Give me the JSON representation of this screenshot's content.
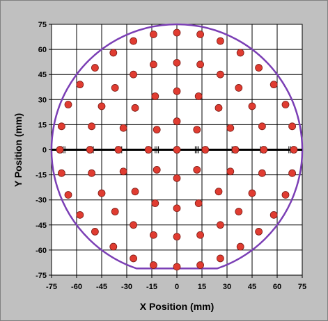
{
  "chart_data": {
    "type": "scatter",
    "xlabel": "X Position (mm)",
    "ylabel": "Y Position (mm)",
    "xlim": [
      -75,
      75
    ],
    "ylim": [
      -75,
      75
    ],
    "xticks": [
      -75,
      -60,
      -45,
      -30,
      -15,
      0,
      15,
      30,
      45,
      60,
      75
    ],
    "yticks": [
      75,
      60,
      45,
      30,
      15,
      0,
      -15,
      -30,
      -45,
      -60,
      -75
    ],
    "grid": true,
    "colors": {
      "plot_background": "#ffffff",
      "outer_background": "#c0c0c0",
      "grid": "#000000",
      "points": "#e03c31",
      "wafer_outline": "#7b3fb5",
      "scan_line": "#000000"
    },
    "wafer_outline": {
      "shape": "circle-with-flat",
      "radius": 75,
      "flat_y": -71
    },
    "points": [
      {
        "x": 0,
        "y": 70
      },
      {
        "x": 14,
        "y": 69
      },
      {
        "x": 26,
        "y": 65
      },
      {
        "x": 38,
        "y": 58
      },
      {
        "x": 49,
        "y": 49
      },
      {
        "x": 58,
        "y": 39
      },
      {
        "x": 65,
        "y": 27
      },
      {
        "x": 69,
        "y": 14
      },
      {
        "x": 70,
        "y": 0
      },
      {
        "x": 69,
        "y": -14
      },
      {
        "x": 65,
        "y": -27
      },
      {
        "x": 58,
        "y": -39
      },
      {
        "x": 49,
        "y": -49
      },
      {
        "x": 38,
        "y": -58
      },
      {
        "x": 26,
        "y": -65
      },
      {
        "x": 14,
        "y": -69
      },
      {
        "x": 0,
        "y": -70
      },
      {
        "x": -14,
        "y": -69
      },
      {
        "x": -26,
        "y": -65
      },
      {
        "x": -38,
        "y": -58
      },
      {
        "x": -49,
        "y": -49
      },
      {
        "x": -58,
        "y": -39
      },
      {
        "x": -65,
        "y": -27
      },
      {
        "x": -69,
        "y": -14
      },
      {
        "x": -70,
        "y": 0
      },
      {
        "x": -69,
        "y": 14
      },
      {
        "x": -65,
        "y": 27
      },
      {
        "x": -58,
        "y": 39
      },
      {
        "x": -49,
        "y": 49
      },
      {
        "x": -38,
        "y": 58
      },
      {
        "x": -26,
        "y": 65
      },
      {
        "x": -14,
        "y": 69
      },
      {
        "x": 0,
        "y": 52
      },
      {
        "x": 14,
        "y": 51
      },
      {
        "x": 26,
        "y": 45
      },
      {
        "x": 37,
        "y": 37
      },
      {
        "x": 45,
        "y": 26
      },
      {
        "x": 51,
        "y": 14
      },
      {
        "x": 52,
        "y": 0
      },
      {
        "x": 51,
        "y": -14
      },
      {
        "x": 45,
        "y": -26
      },
      {
        "x": 37,
        "y": -37
      },
      {
        "x": 26,
        "y": -45
      },
      {
        "x": 14,
        "y": -51
      },
      {
        "x": 0,
        "y": -52
      },
      {
        "x": -14,
        "y": -51
      },
      {
        "x": -26,
        "y": -45
      },
      {
        "x": -37,
        "y": -37
      },
      {
        "x": -45,
        "y": -26
      },
      {
        "x": -51,
        "y": -14
      },
      {
        "x": -52,
        "y": 0
      },
      {
        "x": -51,
        "y": 14
      },
      {
        "x": -45,
        "y": 26
      },
      {
        "x": -37,
        "y": 37
      },
      {
        "x": -26,
        "y": 45
      },
      {
        "x": -14,
        "y": 51
      },
      {
        "x": 0,
        "y": 35
      },
      {
        "x": 13,
        "y": 32
      },
      {
        "x": 25,
        "y": 25
      },
      {
        "x": 32,
        "y": 13
      },
      {
        "x": 35,
        "y": 0
      },
      {
        "x": 32,
        "y": -13
      },
      {
        "x": 25,
        "y": -25
      },
      {
        "x": 13,
        "y": -32
      },
      {
        "x": 0,
        "y": -35
      },
      {
        "x": -13,
        "y": -32
      },
      {
        "x": -25,
        "y": -25
      },
      {
        "x": -32,
        "y": -13
      },
      {
        "x": -35,
        "y": 0
      },
      {
        "x": -32,
        "y": 13
      },
      {
        "x": -25,
        "y": 25
      },
      {
        "x": -13,
        "y": 32
      },
      {
        "x": 0,
        "y": 17
      },
      {
        "x": 12,
        "y": 12
      },
      {
        "x": 17,
        "y": 0
      },
      {
        "x": 12,
        "y": -12
      },
      {
        "x": 0,
        "y": -17
      },
      {
        "x": -12,
        "y": -12
      },
      {
        "x": -17,
        "y": 0
      },
      {
        "x": -12,
        "y": 12
      },
      {
        "x": 0,
        "y": 0
      }
    ],
    "scan_marks_x": [
      -70,
      -69,
      -68,
      -67,
      -53,
      -52,
      -51,
      -50,
      -36,
      -35,
      -34,
      -33,
      -18,
      -17,
      -15,
      -13,
      -12,
      -11,
      -1,
      1,
      11,
      12,
      13,
      15,
      17,
      18,
      33,
      34,
      35,
      36,
      50,
      51,
      52,
      53,
      67,
      68,
      69,
      70
    ]
  }
}
